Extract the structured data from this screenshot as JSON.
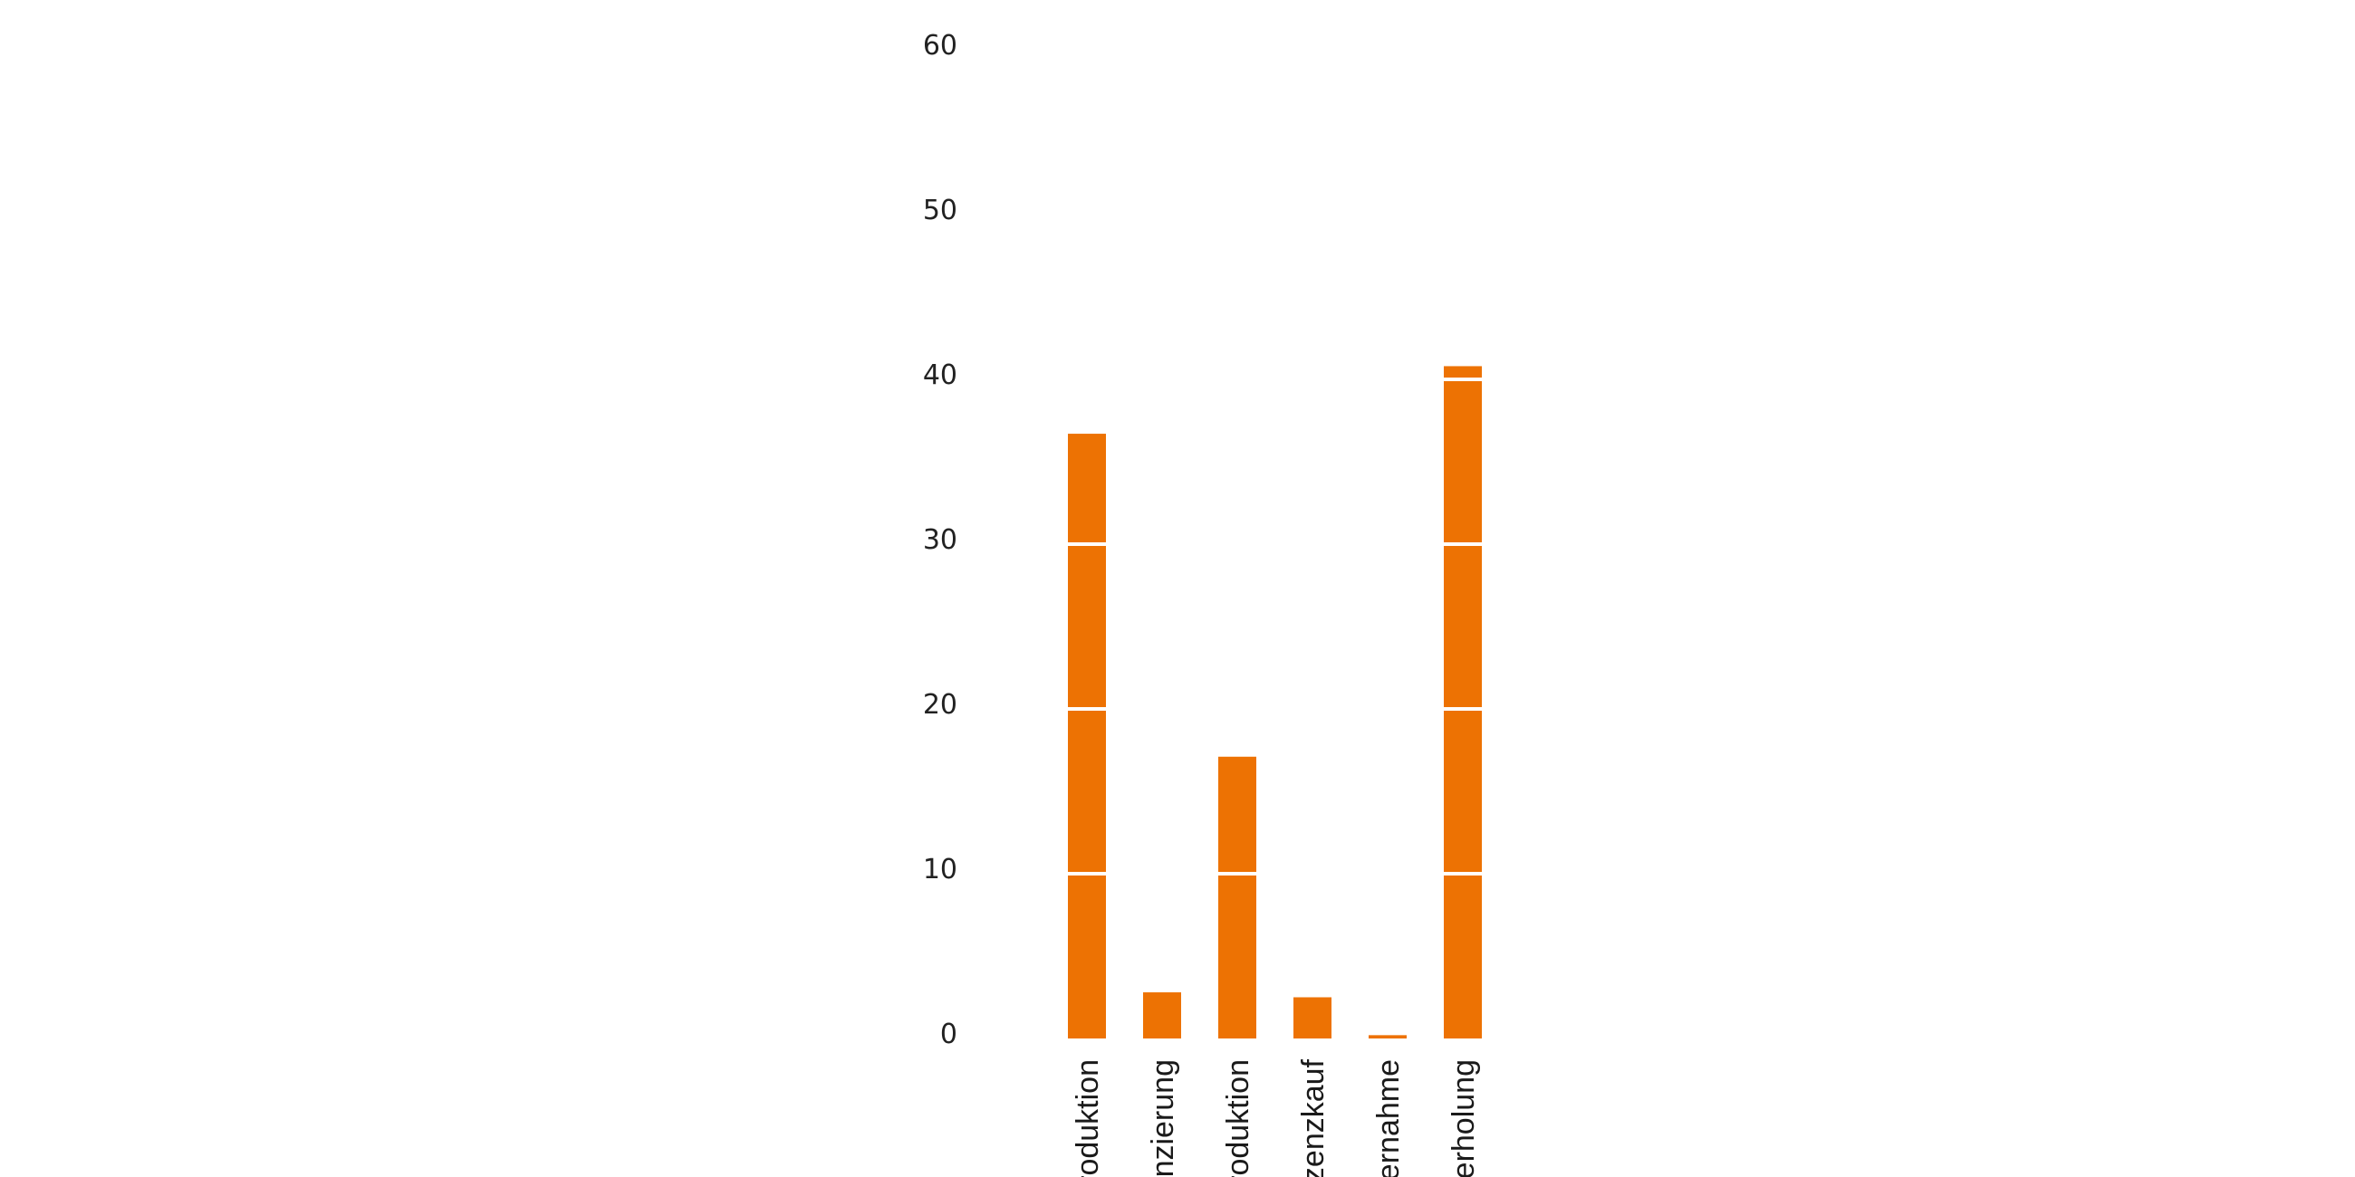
{
  "chart_data": {
    "type": "bar",
    "categories": [
      "roduktion",
      "anzierung",
      "roduktion",
      "zenzkauf",
      "bernahme",
      "derholung"
    ],
    "values": [
      36.7,
      2.8,
      17.1,
      2.5,
      0.2,
      40.8
    ],
    "ylim": [
      0,
      60
    ],
    "yticks": [
      "0",
      "10",
      "20",
      "30",
      "40",
      "50",
      "60"
    ],
    "grid": "white lines over bars at each 10",
    "bar_color": "#ED7203",
    "gridline_color": "#ffffff",
    "xlabel": "",
    "ylabel": ""
  }
}
